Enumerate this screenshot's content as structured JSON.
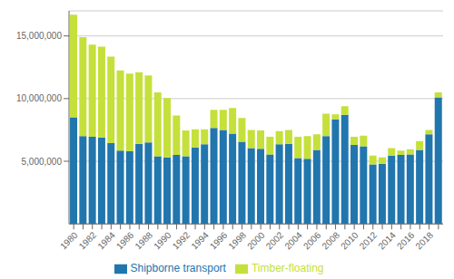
{
  "chart_data": {
    "type": "bar",
    "stacked": true,
    "categories": [
      "1980",
      null,
      "1982",
      null,
      "1984",
      null,
      "1986",
      null,
      "1988",
      null,
      "1990",
      null,
      "1992",
      null,
      "1994",
      null,
      "1996",
      null,
      "1998",
      null,
      "2000",
      null,
      "2002",
      null,
      "2004",
      null,
      "2006",
      null,
      "2008",
      null,
      "2010",
      null,
      "2012",
      null,
      "2014",
      null,
      "2016",
      null,
      "2018",
      null
    ],
    "series": [
      {
        "name": "Shipborne transport",
        "color": "#2176ae",
        "values": [
          8500000,
          7000000,
          6950000,
          6900000,
          6450000,
          5850000,
          5800000,
          6400000,
          6500000,
          5400000,
          5300000,
          5500000,
          5400000,
          6100000,
          6350000,
          7650000,
          7500000,
          7200000,
          6550000,
          6050000,
          6000000,
          5550000,
          6350000,
          6400000,
          5250000,
          5200000,
          5900000,
          7000000,
          8350000,
          8700000,
          6300000,
          6200000,
          4750000,
          4800000,
          5450000,
          5500000,
          5550000,
          5900000,
          7150000,
          10100000
        ]
      },
      {
        "name": "Timber-floating",
        "color": "#c5e03b",
        "values": [
          8200000,
          7900000,
          7350000,
          7250000,
          6900000,
          6400000,
          6200000,
          5700000,
          5350000,
          5100000,
          4750000,
          3150000,
          2050000,
          1450000,
          1200000,
          1450000,
          1600000,
          2050000,
          1900000,
          1450000,
          1450000,
          1400000,
          1050000,
          1100000,
          1700000,
          1800000,
          1250000,
          1800000,
          400000,
          700000,
          650000,
          850000,
          700000,
          500000,
          600000,
          350000,
          400000,
          700000,
          350000,
          400000
        ]
      }
    ],
    "ylim": [
      0,
      17000000
    ],
    "yticks": [
      {
        "value": 5000000,
        "label": "5,000,000"
      },
      {
        "value": 10000000,
        "label": "10,000,000"
      },
      {
        "value": 15000000,
        "label": "15,000,000"
      }
    ],
    "grid": true,
    "legend": "bottom"
  }
}
